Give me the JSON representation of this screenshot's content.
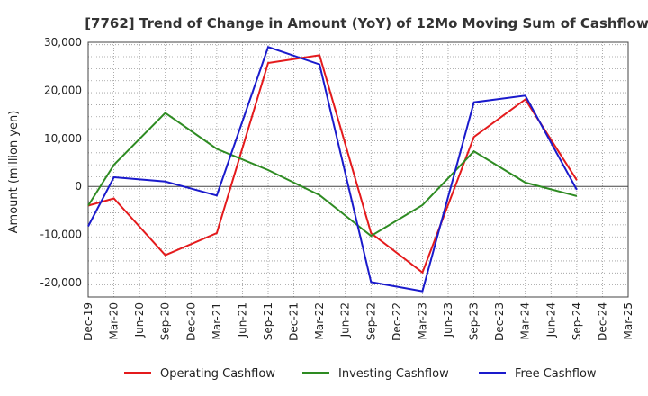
{
  "chart_data": {
    "type": "line",
    "title": "[7762]  Trend of Change in Amount (YoY) of 12Mo Moving Sum of Cashflows",
    "xlabel": "",
    "ylabel": "Amount (million yen)",
    "categories": [
      "Dec-19",
      "Mar-20",
      "Jun-20",
      "Sep-20",
      "Dec-20",
      "Mar-21",
      "Jun-21",
      "Sep-21",
      "Dec-21",
      "Mar-22",
      "Jun-22",
      "Sep-22",
      "Dec-22",
      "Mar-23",
      "Jun-23",
      "Sep-23",
      "Dec-23",
      "Mar-24",
      "Jun-24",
      "Sep-24",
      "Dec-24",
      "Mar-25"
    ],
    "ylim": [
      -23000,
      30000
    ],
    "yticks": [
      -20000,
      -10000,
      0,
      10000,
      20000,
      30000
    ],
    "ytick_labels": [
      "-20,000",
      "-10,000",
      "0",
      "10,000",
      "20,000",
      "30,000"
    ],
    "grid": true,
    "legend_position": "bottom",
    "series": [
      {
        "name": "Operating Cashflow",
        "color": "#e41a1c",
        "values": [
          -4000,
          -2500,
          null,
          -14300,
          null,
          -9700,
          null,
          25700,
          null,
          27300,
          null,
          -9700,
          null,
          -17900,
          null,
          10300,
          null,
          18100,
          null,
          1300,
          null,
          null
        ]
      },
      {
        "name": "Investing Cashflow",
        "color": "#2e8b22",
        "values": [
          -4000,
          4500,
          null,
          15300,
          null,
          7800,
          null,
          3400,
          null,
          -1800,
          null,
          -10300,
          null,
          -3900,
          null,
          7300,
          null,
          800,
          null,
          -2000,
          null,
          null
        ]
      },
      {
        "name": "Free Cashflow",
        "color": "#1a1acc",
        "values": [
          -8300,
          1900,
          null,
          1000,
          null,
          -1900,
          null,
          29000,
          null,
          25400,
          null,
          -19900,
          null,
          -21800,
          null,
          17500,
          null,
          18900,
          null,
          -700,
          null,
          null
        ]
      }
    ]
  }
}
